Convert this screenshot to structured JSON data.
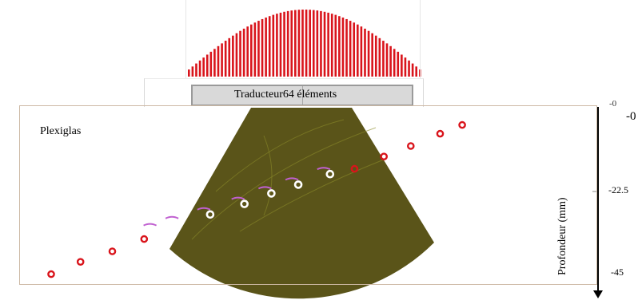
{
  "transducer": {
    "label_left": "Traducteur",
    "label_right": "64 éléments",
    "element_count": 64,
    "element_color": "#d9141b"
  },
  "specimen": {
    "material_label": "Plexiglas",
    "image_color": "#5a5419",
    "frame_color": "#cdb9a5"
  },
  "depth_axis": {
    "title": "Profondeur (mm)",
    "tick_labels": [
      "-0",
      "-22.5",
      "-45"
    ],
    "ghost_label": "-0"
  },
  "markers": {
    "reference_color": "#d9141b",
    "detected_color": "#ffffff",
    "reference_points": [
      {
        "lateral": -1.0,
        "depth": 44.0
      },
      {
        "lateral": -0.88,
        "depth": 40.5
      },
      {
        "lateral": -0.75,
        "depth": 37.5
      },
      {
        "lateral": -0.62,
        "depth": 34.0
      },
      {
        "lateral": 0.24,
        "depth": 14.0
      },
      {
        "lateral": 0.36,
        "depth": 10.5
      },
      {
        "lateral": 0.47,
        "depth": 7.5
      },
      {
        "lateral": 0.59,
        "depth": 4.0
      },
      {
        "lateral": 0.68,
        "depth": 1.5
      }
    ],
    "detected_points": [
      {
        "lateral": -0.57,
        "depth": 31.5
      },
      {
        "lateral": -0.48,
        "depth": 29.5
      },
      {
        "lateral": -0.35,
        "depth": 27.0
      },
      {
        "lateral": -0.21,
        "depth": 24.0
      },
      {
        "lateral": -0.1,
        "depth": 21.0
      },
      {
        "lateral": 0.01,
        "depth": 18.5
      },
      {
        "lateral": 0.14,
        "depth": 15.5
      }
    ]
  }
}
